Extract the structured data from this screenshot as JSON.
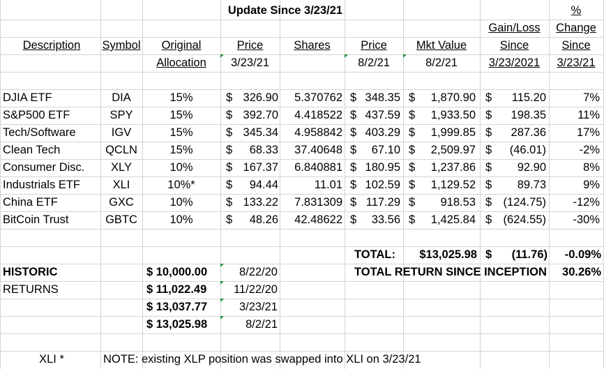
{
  "title": "Update Since 3/23/21",
  "headers": {
    "pct_line1": "%",
    "gain_line2": "Gain/Loss",
    "pct_line2": "Change",
    "description": "Description",
    "symbol": "Symbol",
    "original": "Original",
    "price_a": "Price",
    "shares": "Shares",
    "price_b": "Price",
    "mktvalue": "Mkt Value",
    "since_a": "Since",
    "since_b": "Since",
    "allocation": "Allocation",
    "date_a": "3/23/21",
    "date_b": "8/2/21",
    "date_c": "8/2/21",
    "date_d": "3/23/2021",
    "date_e": "3/23/21"
  },
  "rows": [
    {
      "desc": "DJIA ETF",
      "sym": "DIA",
      "alloc": "15%",
      "p1": "326.90",
      "shares": "5.370762",
      "p2": "348.35",
      "mv": "1,870.90",
      "gl": "115.20",
      "pct": "7%"
    },
    {
      "desc": "S&P500 ETF",
      "sym": "SPY",
      "alloc": "15%",
      "p1": "392.70",
      "shares": "4.418522",
      "p2": "437.59",
      "mv": "1,933.50",
      "gl": "198.35",
      "pct": "11%"
    },
    {
      "desc": "Tech/Software",
      "sym": "IGV",
      "alloc": "15%",
      "p1": "345.34",
      "shares": "4.958842",
      "p2": "403.29",
      "mv": "1,999.85",
      "gl": "287.36",
      "pct": "17%"
    },
    {
      "desc": "Clean Tech",
      "sym": "QCLN",
      "alloc": "15%",
      "p1": "68.33",
      "shares": "37.40648",
      "p2": "67.10",
      "mv": "2,509.97",
      "gl": "(46.01)",
      "pct": "-2%"
    },
    {
      "desc": "Consumer Disc.",
      "sym": "XLY",
      "alloc": "10%",
      "p1": "167.37",
      "shares": "6.840881",
      "p2": "180.95",
      "mv": "1,237.86",
      "gl": "92.90",
      "pct": "8%"
    },
    {
      "desc": "Industrials ETF",
      "sym": "XLI",
      "alloc": "10%*",
      "p1": "94.44",
      "shares": "11.01",
      "p2": "102.59",
      "mv": "1,129.52",
      "gl": "89.73",
      "pct": "9%"
    },
    {
      "desc": "China ETF",
      "sym": "GXC",
      "alloc": "10%",
      "p1": "133.22",
      "shares": "7.831309",
      "p2": "117.29",
      "mv": "918.53",
      "gl": "(124.75)",
      "pct": "-12%"
    },
    {
      "desc": "BitCoin Trust",
      "sym": "GBTC",
      "alloc": "10%",
      "p1": "48.26",
      "shares": "42.48622",
      "p2": "33.56",
      "mv": "1,425.84",
      "gl": "(624.55)",
      "pct": "-30%"
    }
  ],
  "currency": "$",
  "total": {
    "label": "TOTAL:",
    "mv": "$13,025.98",
    "gl": "(11.76)",
    "pct": "-0.09%"
  },
  "inception": {
    "label": "TOTAL RETURN SINCE INCEPTION",
    "pct": "30.26%"
  },
  "historic": {
    "label1": "HISTORIC",
    "label2": "RETURNS",
    "entries": [
      {
        "value": "$ 10,000.00",
        "date": "8/22/20"
      },
      {
        "value": "$ 11,022.49",
        "date": "11/22/20"
      },
      {
        "value": "$ 13,037.77",
        "date": "3/23/21"
      },
      {
        "value": "$ 13,025.98",
        "date": "8/2/21"
      }
    ]
  },
  "note": {
    "ref": "XLI *",
    "text": "NOTE: existing XLP position was swapped into XLI on 3/23/21"
  },
  "colors": {
    "gridline": "#d4d4d4",
    "comment_marker": "#1e8e3e"
  }
}
